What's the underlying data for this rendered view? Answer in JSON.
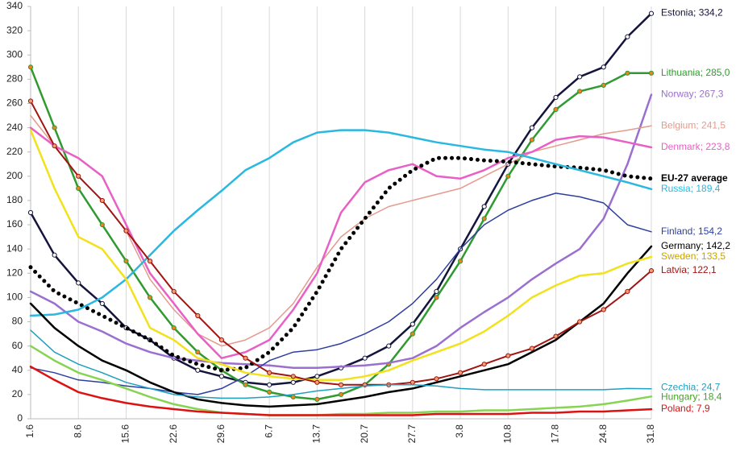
{
  "chart_data": {
    "type": "line",
    "categories": [
      "1.6",
      null,
      "8.6",
      null,
      "15.6",
      null,
      "22.6",
      null,
      "29.6",
      null,
      "6.7",
      null,
      "13.7",
      null,
      "20.7",
      null,
      "27.7",
      null,
      "3.8",
      null,
      "10.8",
      null,
      "17.8",
      null,
      "24.8",
      null,
      "31.8"
    ],
    "ylim": [
      0,
      340
    ],
    "yticks": [
      0,
      20,
      40,
      60,
      80,
      100,
      120,
      140,
      160,
      180,
      200,
      220,
      240,
      260,
      280,
      300,
      320,
      340
    ],
    "grid": "x",
    "label_separator": "; ",
    "series": [
      {
        "name": "Estonia",
        "color": "#14143c",
        "width": 2.5,
        "marker": "circle",
        "marker_fill": "#ffffff",
        "values": [
          170,
          135,
          112,
          95,
          75,
          65,
          50,
          40,
          35,
          30,
          28,
          30,
          35,
          42,
          50,
          60,
          78,
          105,
          140,
          175,
          210,
          240,
          265,
          282,
          290,
          315,
          334.2
        ],
        "value_labels": [
          null,
          null,
          null,
          null,
          null,
          null,
          null,
          null,
          null,
          null,
          null,
          null,
          null,
          null,
          null,
          null,
          null,
          null,
          null,
          null,
          null,
          null,
          null,
          null,
          null,
          null,
          "334,2"
        ]
      },
      {
        "name": "Lithuania",
        "color": "#2f9a2f",
        "width": 2.5,
        "marker": "circle",
        "marker_fill": "#f08020",
        "values": [
          290,
          240,
          190,
          160,
          130,
          100,
          75,
          55,
          40,
          28,
          22,
          18,
          16,
          20,
          28,
          45,
          70,
          100,
          130,
          165,
          200,
          230,
          255,
          270,
          275,
          285,
          285.0
        ],
        "value_labels": [
          null,
          null,
          null,
          null,
          null,
          null,
          null,
          null,
          null,
          null,
          null,
          null,
          null,
          null,
          null,
          null,
          null,
          null,
          null,
          null,
          null,
          null,
          null,
          null,
          null,
          null,
          "285,0"
        ]
      },
      {
        "name": "Norway",
        "color": "#9b6fd0",
        "width": 2.5,
        "values": [
          105,
          95,
          80,
          72,
          62,
          55,
          50,
          48,
          46,
          45,
          44,
          42,
          42,
          43,
          44,
          46,
          50,
          60,
          75,
          88,
          100,
          115,
          128,
          140,
          165,
          210,
          267.3
        ],
        "value_labels": [
          null,
          null,
          null,
          null,
          null,
          null,
          null,
          null,
          null,
          null,
          null,
          null,
          null,
          null,
          null,
          null,
          null,
          null,
          null,
          null,
          null,
          null,
          null,
          null,
          null,
          null,
          "267,3"
        ]
      },
      {
        "name": "Belgium",
        "color": "#e49a8c",
        "width": 1.5,
        "values": [
          250,
          225,
          200,
          180,
          155,
          115,
          90,
          70,
          60,
          65,
          75,
          95,
          125,
          150,
          165,
          175,
          180,
          185,
          190,
          200,
          210,
          220,
          225,
          230,
          235,
          238,
          241.5
        ],
        "value_labels": [
          null,
          null,
          null,
          null,
          null,
          null,
          null,
          null,
          null,
          null,
          null,
          null,
          null,
          null,
          null,
          null,
          null,
          null,
          null,
          null,
          null,
          null,
          null,
          null,
          null,
          null,
          "241,5"
        ]
      },
      {
        "name": "Denmark",
        "color": "#e860c4",
        "width": 2.5,
        "values": [
          240,
          225,
          215,
          200,
          160,
          120,
          95,
          70,
          50,
          55,
          65,
          90,
          120,
          170,
          195,
          205,
          210,
          200,
          198,
          205,
          215,
          220,
          230,
          233,
          232,
          228,
          223.8
        ],
        "value_labels": [
          null,
          null,
          null,
          null,
          null,
          null,
          null,
          null,
          null,
          null,
          null,
          null,
          null,
          null,
          null,
          null,
          null,
          null,
          null,
          null,
          null,
          null,
          null,
          null,
          null,
          null,
          "223,8"
        ]
      },
      {
        "name": "EU-27 average",
        "color": "#000000",
        "width": 5,
        "dash": "dot",
        "bold": true,
        "values": [
          125,
          105,
          95,
          85,
          75,
          65,
          52,
          45,
          40,
          42,
          55,
          75,
          105,
          140,
          165,
          190,
          205,
          215,
          215,
          213,
          212,
          210,
          208,
          207,
          205,
          200,
          198
        ]
      },
      {
        "name": "Russia",
        "color": "#29b8e0",
        "width": 2.5,
        "values": [
          85,
          86,
          90,
          100,
          115,
          135,
          155,
          172,
          188,
          205,
          215,
          228,
          236,
          238,
          238,
          236,
          232,
          228,
          225,
          222,
          220,
          215,
          210,
          205,
          200,
          195,
          189.4
        ],
        "value_labels": [
          null,
          null,
          null,
          null,
          null,
          null,
          null,
          null,
          null,
          null,
          null,
          null,
          null,
          null,
          null,
          null,
          null,
          null,
          null,
          null,
          null,
          null,
          null,
          null,
          null,
          null,
          "189,4"
        ]
      },
      {
        "name": "Finland",
        "color": "#2e3ea0",
        "width": 1.5,
        "values": [
          42,
          38,
          32,
          30,
          27,
          25,
          22,
          20,
          25,
          35,
          48,
          55,
          57,
          62,
          70,
          80,
          95,
          115,
          140,
          160,
          172,
          180,
          186,
          183,
          178,
          160,
          154.2
        ],
        "value_labels": [
          null,
          null,
          null,
          null,
          null,
          null,
          null,
          null,
          null,
          null,
          null,
          null,
          null,
          null,
          null,
          null,
          null,
          null,
          null,
          null,
          null,
          null,
          null,
          null,
          null,
          null,
          "154,2"
        ]
      },
      {
        "name": "Germany",
        "color": "#000000",
        "width": 2.5,
        "values": [
          95,
          75,
          60,
          48,
          40,
          30,
          22,
          16,
          13,
          11,
          10,
          11,
          12,
          15,
          18,
          22,
          25,
          30,
          35,
          40,
          45,
          55,
          65,
          80,
          95,
          120,
          142.2
        ],
        "value_labels": [
          null,
          null,
          null,
          null,
          null,
          null,
          null,
          null,
          null,
          null,
          null,
          null,
          null,
          null,
          null,
          null,
          null,
          null,
          null,
          null,
          null,
          null,
          null,
          null,
          null,
          null,
          "142,2"
        ]
      },
      {
        "name": "Sweden",
        "color": "#f2e21c",
        "label_color": "#c8a400",
        "width": 2.5,
        "values": [
          238,
          190,
          150,
          140,
          115,
          75,
          65,
          50,
          45,
          38,
          35,
          33,
          32,
          32,
          35,
          40,
          48,
          55,
          62,
          72,
          85,
          100,
          110,
          118,
          120,
          128,
          133.5
        ],
        "value_labels": [
          null,
          null,
          null,
          null,
          null,
          null,
          null,
          null,
          null,
          null,
          null,
          null,
          null,
          null,
          null,
          null,
          null,
          null,
          null,
          null,
          null,
          null,
          null,
          null,
          null,
          null,
          "133,5"
        ]
      },
      {
        "name": "Latvia",
        "color": "#a01414",
        "width": 2,
        "marker": "circle",
        "marker_fill": "#f0a070",
        "values": [
          262,
          225,
          200,
          180,
          155,
          130,
          105,
          85,
          65,
          50,
          38,
          35,
          30,
          28,
          28,
          28,
          30,
          33,
          38,
          45,
          52,
          58,
          68,
          80,
          90,
          105,
          122.1
        ],
        "value_labels": [
          null,
          null,
          null,
          null,
          null,
          null,
          null,
          null,
          null,
          null,
          null,
          null,
          null,
          null,
          null,
          null,
          null,
          null,
          null,
          null,
          null,
          null,
          null,
          null,
          null,
          null,
          "122,1"
        ]
      },
      {
        "name": "Czechia",
        "color": "#1ea0c0",
        "width": 1.5,
        "values": [
          73,
          55,
          45,
          38,
          30,
          25,
          20,
          18,
          17,
          17,
          18,
          20,
          23,
          25,
          27,
          28,
          28,
          27,
          25,
          24,
          24,
          24,
          24,
          24,
          24,
          25,
          24.7
        ],
        "value_labels": [
          null,
          null,
          null,
          null,
          null,
          null,
          null,
          null,
          null,
          null,
          null,
          null,
          null,
          null,
          null,
          null,
          null,
          null,
          null,
          null,
          null,
          null,
          null,
          null,
          null,
          null,
          "24,7"
        ]
      },
      {
        "name": "Hungary",
        "color": "#86d452",
        "label_color": "#4aa02a",
        "width": 2.5,
        "values": [
          60,
          48,
          38,
          32,
          25,
          18,
          12,
          8,
          5,
          4,
          3,
          3,
          3,
          4,
          4,
          5,
          5,
          6,
          6,
          7,
          7,
          8,
          9,
          10,
          12,
          15,
          18.4
        ],
        "value_labels": [
          null,
          null,
          null,
          null,
          null,
          null,
          null,
          null,
          null,
          null,
          null,
          null,
          null,
          null,
          null,
          null,
          null,
          null,
          null,
          null,
          null,
          null,
          null,
          null,
          null,
          null,
          "18,4"
        ]
      },
      {
        "name": "Poland",
        "color": "#dd1111",
        "width": 2.5,
        "values": [
          43,
          32,
          22,
          17,
          13,
          10,
          8,
          6,
          5,
          4,
          3,
          3,
          3,
          3,
          3,
          3,
          3,
          4,
          4,
          4,
          4,
          5,
          5,
          6,
          6,
          7,
          7.9
        ],
        "value_labels": [
          null,
          null,
          null,
          null,
          null,
          null,
          null,
          null,
          null,
          null,
          null,
          null,
          null,
          null,
          null,
          null,
          null,
          null,
          null,
          null,
          null,
          null,
          null,
          null,
          null,
          null,
          "7,9"
        ]
      }
    ]
  }
}
